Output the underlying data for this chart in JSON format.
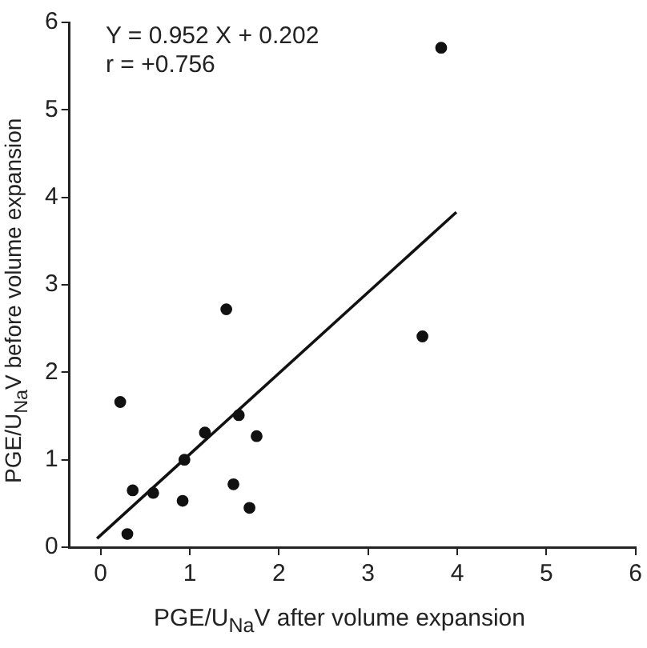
{
  "chart_data": {
    "type": "scatter",
    "xlabel": "PGE/U$_{Na}$V after volume expansion",
    "ylabel": "PGE/U$_{Na}$V before volume expansion",
    "annotations": [
      "Y = 0.952 X + 0.202",
      "r = +0.756"
    ],
    "series": [
      {
        "color": "#111111",
        "marker": "circle",
        "x": [
          0.22,
          0.36,
          0.3,
          0.59,
          0.94,
          0.92,
          1.17,
          1.41,
          1.55,
          1.49,
          1.75,
          1.67,
          3.61,
          3.82
        ],
        "values": [
          1.66,
          0.65,
          0.15,
          0.62,
          1.0,
          0.53,
          1.31,
          2.72,
          1.51,
          0.72,
          1.27,
          0.45,
          2.41,
          5.71
        ]
      },
      {
        "type": "line",
        "color": "#111111",
        "marker": "none",
        "x": [
          -0.04,
          3.99
        ],
        "values": [
          0.1,
          3.83
        ]
      }
    ],
    "xlim": [
      -0.35,
      6
    ],
    "ylim": [
      0,
      6
    ],
    "xticks": [
      0,
      1,
      2,
      3,
      4,
      5,
      6
    ],
    "yticks": [
      0,
      1,
      2,
      3,
      4,
      5,
      6
    ],
    "grid": false,
    "legend": false
  }
}
